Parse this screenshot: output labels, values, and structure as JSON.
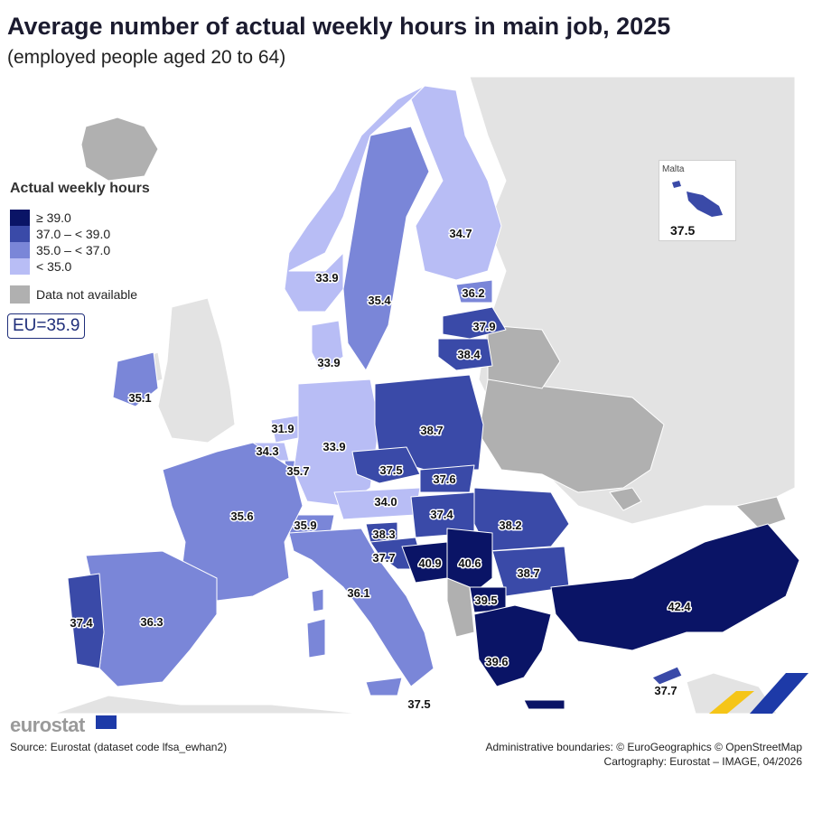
{
  "title": "Average number of actual weekly hours in main job, 2025",
  "subtitle": "(employed people aged 20 to 64)",
  "legend": {
    "title": "Actual weekly hours",
    "classes": [
      {
        "label": "≥ 39.0",
        "color": "#0a1466"
      },
      {
        "label": "37.0 – < 39.0",
        "color": "#3a4aa8"
      },
      {
        "label": "35.0 – < 37.0",
        "color": "#7a86d8"
      },
      {
        "label": "< 35.0",
        "color": "#b8bdf5"
      }
    ],
    "not_available": {
      "label": "Data not available",
      "color": "#b0b0b0"
    }
  },
  "eu_average": "EU=35.9",
  "inset": {
    "title": "Malta",
    "value": "37.5"
  },
  "colors": {
    "sea": "#ffffff",
    "non_eu_land": "#e3e3e3",
    "no_data": "#b0b0b0"
  },
  "regions": [
    {
      "name": "finland",
      "value": "34.7"
    },
    {
      "name": "sweden",
      "value": "35.4"
    },
    {
      "name": "norway",
      "value": "33.9"
    },
    {
      "name": "estonia",
      "value": "36.2"
    },
    {
      "name": "latvia",
      "value": "37.9"
    },
    {
      "name": "lithuania",
      "value": "38.4"
    },
    {
      "name": "denmark",
      "value": "33.9"
    },
    {
      "name": "ireland",
      "value": "35.1"
    },
    {
      "name": "netherlands",
      "value": "31.9"
    },
    {
      "name": "belgium",
      "value": "34.3"
    },
    {
      "name": "luxembourg",
      "value": "35.7"
    },
    {
      "name": "germany",
      "value": "33.9"
    },
    {
      "name": "poland",
      "value": "38.7"
    },
    {
      "name": "czechia",
      "value": "37.5"
    },
    {
      "name": "slovakia",
      "value": "37.6"
    },
    {
      "name": "austria",
      "value": "34.0"
    },
    {
      "name": "hungary",
      "value": "37.4"
    },
    {
      "name": "switzerland",
      "value": "35.9"
    },
    {
      "name": "slovenia",
      "value": "38.3"
    },
    {
      "name": "croatia",
      "value": "37.7"
    },
    {
      "name": "bosnia",
      "value": "40.9"
    },
    {
      "name": "serbia",
      "value": "40.6"
    },
    {
      "name": "romania",
      "value": "38.2"
    },
    {
      "name": "bulgaria",
      "value": "38.7"
    },
    {
      "name": "north-macedonia",
      "value": "39.5"
    },
    {
      "name": "greece",
      "value": "39.6"
    },
    {
      "name": "turkey",
      "value": "42.4"
    },
    {
      "name": "cyprus",
      "value": "37.7"
    },
    {
      "name": "italy",
      "value": "36.1"
    },
    {
      "name": "malta-sicily-label",
      "value": "37.5"
    },
    {
      "name": "france",
      "value": "35.6"
    },
    {
      "name": "spain",
      "value": "36.3"
    },
    {
      "name": "portugal",
      "value": "37.4"
    }
  ],
  "footer": {
    "brand": "eurostat",
    "source": "Source: Eurostat (dataset code lfsa_ewhan2)",
    "credit_boundaries": "Administrative boundaries: © EuroGeographics © OpenStreetMap",
    "credit_cartography": "Cartography: Eurostat – IMAGE, 04/2026"
  }
}
